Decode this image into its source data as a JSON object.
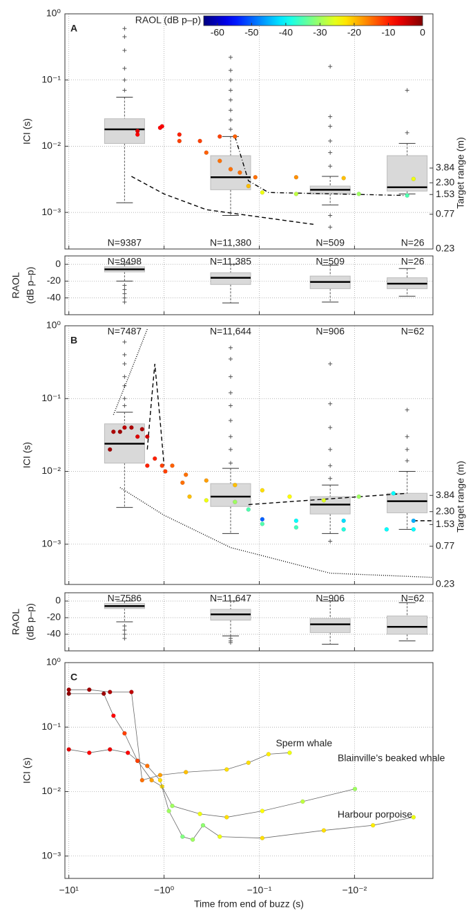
{
  "chart_data": [
    {
      "type": "box",
      "label": "A",
      "ylabel": "ICI (s)",
      "y2label": "Target range (m)",
      "log_x": true,
      "log_y": true,
      "log_y2": true,
      "grid": true,
      "n_position": "bottom",
      "xlim": [
        -11,
        -0.0015
      ],
      "xticks": [
        -10,
        -1,
        -0.1,
        -0.01
      ],
      "ylim": [
        0.00028,
        1
      ],
      "yticks": [
        {
          "value": 1,
          "label": "10⁰"
        },
        {
          "value": 0.1,
          "label": "10⁻¹"
        },
        {
          "value": 0.01,
          "label": "10⁻²"
        },
        {
          "value": 0.001,
          "label": "10⁻³"
        }
      ],
      "y2lim": [
        0.23,
        820
      ],
      "y2ticks": [
        0.23,
        0.77,
        1.53,
        {
          "value": 2.3,
          "label": "2.30"
        },
        3.84
      ],
      "colorbar": {
        "label": "RAOL (dB p–p)",
        "colormap": "jet",
        "lim": [
          -64,
          0
        ],
        "ticks": [
          -60,
          -50,
          -40,
          -30,
          -20,
          -10,
          0
        ]
      },
      "boxes": [
        {
          "x": -2.6,
          "low": 0.0014,
          "q1": 0.011,
          "median": 0.018,
          "q3": 0.026,
          "high": 0.055,
          "outliers": [
            0.07,
            0.1,
            0.15,
            0.28,
            0.45,
            0.6
          ],
          "label": "N=9387"
        },
        {
          "x": -0.2,
          "low": 0.0009,
          "q1": 0.0022,
          "median": 0.0034,
          "q3": 0.0072,
          "high": 0.014,
          "outliers": [
            0.018,
            0.025,
            0.035,
            0.05,
            0.07,
            0.1,
            0.14,
            0.22
          ],
          "label": "N=11,380"
        },
        {
          "x": -0.018,
          "low": 0.0013,
          "q1": 0.0019,
          "median": 0.0022,
          "q3": 0.0025,
          "high": 0.0035,
          "outliers": [
            0.005,
            0.008,
            0.012,
            0.02,
            0.028,
            0.16,
            0.0009,
            0.0006
          ],
          "label": "N=509"
        },
        {
          "x": -0.0028,
          "low": 0.0019,
          "q1": 0.0021,
          "median": 0.0024,
          "q3": 0.0072,
          "high": 0.011,
          "outliers": [
            0.016,
            0.07
          ],
          "label": "N=26"
        }
      ],
      "series": [
        {
          "x": [
            -1.9,
            -1.05,
            -0.69,
            -0.42,
            -0.26,
            -0.18,
            -0.16,
            -0.11,
            -0.041,
            -0.013,
            -0.0024
          ],
          "values": [
            0.015,
            0.02,
            0.015,
            0.012,
            0.014,
            0.014,
            0.004,
            0.0034,
            0.0034,
            0.0033,
            0.0032
          ],
          "raol": [
            -8,
            -8,
            -10,
            -12,
            -12,
            -14,
            -15,
            -15,
            -17,
            -20,
            -25
          ]
        },
        {
          "x": [
            -1.9,
            -1.1,
            -0.69,
            -0.36,
            -0.26,
            -0.2,
            -0.13,
            -0.093,
            -0.041,
            -0.009,
            -0.0028
          ],
          "values": [
            0.017,
            0.019,
            0.012,
            0.008,
            0.006,
            0.0045,
            0.0025,
            0.002,
            0.0019,
            0.0019,
            0.0018
          ],
          "raol": [
            -6,
            -8,
            -12,
            -14,
            -15,
            -15,
            -20,
            -25,
            -28,
            -30,
            -35
          ]
        }
      ],
      "lines": [
        {
          "style": "dashed",
          "x": [
            -2.2,
            -1,
            -0.36,
            -0.027
          ],
          "values": [
            0.0035,
            0.0019,
            0.0011,
            0.00066
          ]
        },
        {
          "style": "dashdot",
          "x": [
            -0.18,
            -0.13,
            -0.08,
            -0.0028
          ],
          "values": [
            0.014,
            0.003,
            0.002,
            0.0018
          ]
        }
      ]
    },
    {
      "type": "box",
      "ylabel": [
        "RAOL",
        "(dB p–p)"
      ],
      "log_x": true,
      "grid": true,
      "n_position": "top",
      "xlim": [
        -11,
        -0.0015
      ],
      "xticks": [
        -10,
        -1,
        -0.1,
        -0.01
      ],
      "ylim": [
        -60,
        10
      ],
      "yticks": [
        0,
        -20,
        -40
      ],
      "boxes": [
        {
          "x": -2.6,
          "low": -20,
          "q1": -9,
          "median": -6,
          "q3": -3,
          "high": 0,
          "outliers": [
            -25,
            -30,
            -35,
            -40,
            -45
          ],
          "label": "N=9498"
        },
        {
          "x": -0.2,
          "low": -46,
          "q1": -24,
          "median": -16,
          "q3": -10,
          "high": 0,
          "outliers": [],
          "label": "N=11,385"
        },
        {
          "x": -0.018,
          "low": -45,
          "q1": -29,
          "median": -21,
          "q3": -14,
          "high": -1,
          "outliers": [],
          "label": "N=509"
        },
        {
          "x": -0.0028,
          "low": -38,
          "q1": -29,
          "median": -23,
          "q3": -16,
          "high": -5,
          "outliers": [],
          "label": "N=26"
        }
      ]
    },
    {
      "type": "box",
      "label": "B",
      "ylabel": "ICI (s)",
      "y2label": "Target range (m)",
      "log_x": true,
      "log_y": true,
      "log_y2": true,
      "grid": true,
      "n_position": "top",
      "xlim": [
        -11,
        -0.0015
      ],
      "xticks": [
        -10,
        -1,
        -0.1,
        -0.01
      ],
      "ylim": [
        0.00028,
        1
      ],
      "yticks": [
        {
          "value": 1,
          "label": "10⁰"
        },
        {
          "value": 0.1,
          "label": "10⁻¹"
        },
        {
          "value": 0.01,
          "label": "10⁻²"
        },
        {
          "value": 0.001,
          "label": "10⁻³"
        }
      ],
      "y2lim": [
        0.23,
        820
      ],
      "y2ticks": [
        0.23,
        0.77,
        1.53,
        {
          "value": 2.3,
          "label": "2.30"
        },
        3.84
      ],
      "boxes": [
        {
          "x": -2.6,
          "low": 0.0032,
          "q1": 0.013,
          "median": 0.024,
          "q3": 0.045,
          "high": 0.065,
          "outliers": [
            0.08,
            0.1,
            0.15,
            0.2,
            0.3,
            0.4,
            0.6
          ],
          "label": "N=7487"
        },
        {
          "x": -0.2,
          "low": 0.0014,
          "q1": 0.0033,
          "median": 0.0045,
          "q3": 0.0068,
          "high": 0.011,
          "outliers": [
            0.013,
            0.02,
            0.03,
            0.05,
            0.08,
            0.12,
            0.2,
            0.35,
            0.5
          ],
          "label": "N=11,644"
        },
        {
          "x": -0.018,
          "low": 0.0014,
          "q1": 0.0026,
          "median": 0.0035,
          "q3": 0.0045,
          "high": 0.0065,
          "outliers": [
            0.008,
            0.012,
            0.02,
            0.04,
            0.085,
            0.3,
            0.0011
          ],
          "label": "N=906"
        },
        {
          "x": -0.0028,
          "low": 0.0016,
          "q1": 0.0027,
          "median": 0.0039,
          "q3": 0.005,
          "high": 0.01,
          "outliers": [
            0.014,
            0.02,
            0.03,
            0.07
          ],
          "label": "N=62"
        }
      ],
      "series": [
        {
          "x": [
            -3.7,
            -2.9,
            -2.2,
            -1.7,
            -1.5,
            -1.25,
            -1.05,
            -0.82,
            -0.59,
            -0.36,
            -0.18,
            -0.093,
            -0.048,
            -0.021,
            -0.009,
            -0.0039
          ],
          "values": [
            0.02,
            0.035,
            0.04,
            0.038,
            0.03,
            0.015,
            0.012,
            0.012,
            0.009,
            0.0075,
            0.0065,
            0.0055,
            0.0045,
            0.004,
            0.0045,
            0.005
          ],
          "raol": [
            -2,
            -2,
            -3,
            -3,
            -5,
            -10,
            -12,
            -14,
            -15,
            -18,
            -20,
            -22,
            -24,
            -26,
            -30,
            -40
          ]
        },
        {
          "x": [
            -3.4,
            -2.6,
            -1.9,
            -1.5,
            -0.97,
            -0.64,
            -0.54,
            -0.36,
            -0.18,
            -0.13,
            -0.093,
            -0.041,
            -0.013,
            -0.0024
          ],
          "values": [
            0.035,
            0.04,
            0.03,
            0.012,
            0.01,
            0.007,
            0.0045,
            0.004,
            0.0038,
            0.003,
            0.0022,
            0.0021,
            0.0021,
            0.0021
          ],
          "raol": [
            -3,
            -4,
            -6,
            -10,
            -12,
            -15,
            -20,
            -25,
            -30,
            -35,
            -50,
            -40,
            -42,
            -45
          ]
        },
        {
          "x": [
            -0.093,
            -0.041,
            -0.013,
            -0.0046,
            -0.0024
          ],
          "values": [
            0.0019,
            0.0017,
            0.0016,
            0.0016,
            0.0016
          ],
          "raol": [
            -35,
            -36,
            -38,
            -40,
            -40
          ]
        }
      ],
      "lines": [
        {
          "style": "dotted",
          "x": [
            -3.4,
            -2.2,
            -1.5
          ],
          "values": [
            0.06,
            0.25,
            0.9
          ]
        },
        {
          "style": "dashed",
          "x": [
            -1.5,
            -1.35,
            -1.25,
            -1.1,
            -1.0
          ],
          "values": [
            0.02,
            0.1,
            0.3,
            0.05,
            0.012
          ]
        },
        {
          "style": "dotted",
          "x": [
            -2.9,
            -1.0,
            -0.2,
            -0.018,
            -0.0015
          ],
          "values": [
            0.006,
            0.0025,
            0.0009,
            0.0004,
            0.00035
          ]
        },
        {
          "style": "dashed",
          "x": [
            -0.13,
            -0.0028
          ],
          "values": [
            0.0035,
            0.005
          ]
        },
        {
          "style": "dashed",
          "x": [
            -0.0024,
            -0.0015
          ],
          "values": [
            0.0021,
            0.0021
          ]
        }
      ]
    },
    {
      "type": "box",
      "ylabel": [
        "RAOL",
        "(dB p–p)"
      ],
      "log_x": true,
      "grid": true,
      "n_position": "top",
      "xlim": [
        -11,
        -0.0015
      ],
      "xticks": [
        -10,
        -1,
        -0.1,
        -0.01
      ],
      "ylim": [
        -60,
        10
      ],
      "yticks": [
        0,
        -20,
        -40
      ],
      "boxes": [
        {
          "x": -2.6,
          "low": -25,
          "q1": -9,
          "median": -6,
          "q3": -3,
          "high": 0,
          "outliers": [
            -30,
            -35,
            -40,
            -45
          ],
          "label": "N=7586"
        },
        {
          "x": -0.2,
          "low": -42,
          "q1": -23,
          "median": -16,
          "q3": -10,
          "high": 0,
          "outliers": [
            -45,
            -48,
            -50
          ],
          "label": "N=11,647"
        },
        {
          "x": -0.018,
          "low": -52,
          "q1": -38,
          "median": -28,
          "q3": -21,
          "high": 0,
          "outliers": [],
          "label": "N=906"
        },
        {
          "x": -0.0028,
          "low": -48,
          "q1": -40,
          "median": -31,
          "q3": -18,
          "high": -2,
          "outliers": [],
          "label": "N=62"
        }
      ]
    },
    {
      "type": "scatter",
      "label": "C",
      "ylabel": "ICI (s)",
      "xlabel": "Time from end of buzz (s)",
      "log_x": true,
      "log_y": true,
      "grid": true,
      "xlim": [
        -11,
        -0.0015
      ],
      "xticks": [
        {
          "value": -10,
          "label": "−10¹"
        },
        {
          "value": -1,
          "label": "−10⁰"
        },
        {
          "value": -0.1,
          "label": "−10⁻¹"
        },
        {
          "value": -0.01,
          "label": "−10⁻²"
        }
      ],
      "ylim": [
        0.00045,
        1
      ],
      "yticks": [
        {
          "value": 1,
          "label": "10⁰"
        },
        {
          "value": 0.1,
          "label": "10⁻¹"
        },
        {
          "value": 0.01,
          "label": "10⁻²"
        },
        {
          "value": 0.001,
          "label": "10⁻³"
        }
      ],
      "series": [
        {
          "name": "Sperm whale",
          "x": [
            -10,
            -6.1,
            -3.7,
            -2.2,
            -1.7,
            -1.1,
            -0.59,
            -0.22,
            -0.13,
            -0.08,
            -0.048
          ],
          "values": [
            0.38,
            0.38,
            0.35,
            0.35,
            0.015,
            0.018,
            0.02,
            0.022,
            0.028,
            0.038,
            0.04
          ],
          "raol": [
            -2,
            -2,
            -3,
            -4,
            -15,
            -18,
            -20,
            -22,
            -22,
            -23,
            -25
          ]
        },
        {
          "name": "Blainville’s beaked whale",
          "x": [
            -10,
            -4.3,
            -3.4,
            -2.6,
            -1.9,
            -1.35,
            -1.05,
            -0.82,
            -0.42,
            -0.22,
            -0.093,
            -0.035,
            -0.0099
          ],
          "values": [
            0.33,
            0.33,
            0.15,
            0.08,
            0.03,
            0.015,
            0.012,
            0.006,
            0.0045,
            0.004,
            0.005,
            0.007,
            0.011
          ],
          "raol": [
            -1,
            -2,
            -8,
            -12,
            -14,
            -18,
            -22,
            -30,
            -25,
            -22,
            -24,
            -28,
            -30
          ]
        },
        {
          "name": "Harbour porpoise",
          "x": [
            -10,
            -6.1,
            -3.7,
            -2.4,
            -1.9,
            -1.5,
            -1.1,
            -0.89,
            -0.64,
            -0.5,
            -0.39,
            -0.26,
            -0.093,
            -0.021,
            -0.0064,
            -0.0024
          ],
          "values": [
            0.045,
            0.04,
            0.045,
            0.04,
            0.03,
            0.025,
            0.015,
            0.005,
            0.002,
            0.0018,
            0.003,
            0.002,
            0.0019,
            0.0025,
            0.003,
            0.004
          ],
          "raol": [
            -6,
            -8,
            -7,
            -8,
            -12,
            -15,
            -22,
            -30,
            -32,
            -30,
            -31,
            -25,
            -22,
            -22,
            -23,
            -25
          ]
        }
      ]
    }
  ]
}
